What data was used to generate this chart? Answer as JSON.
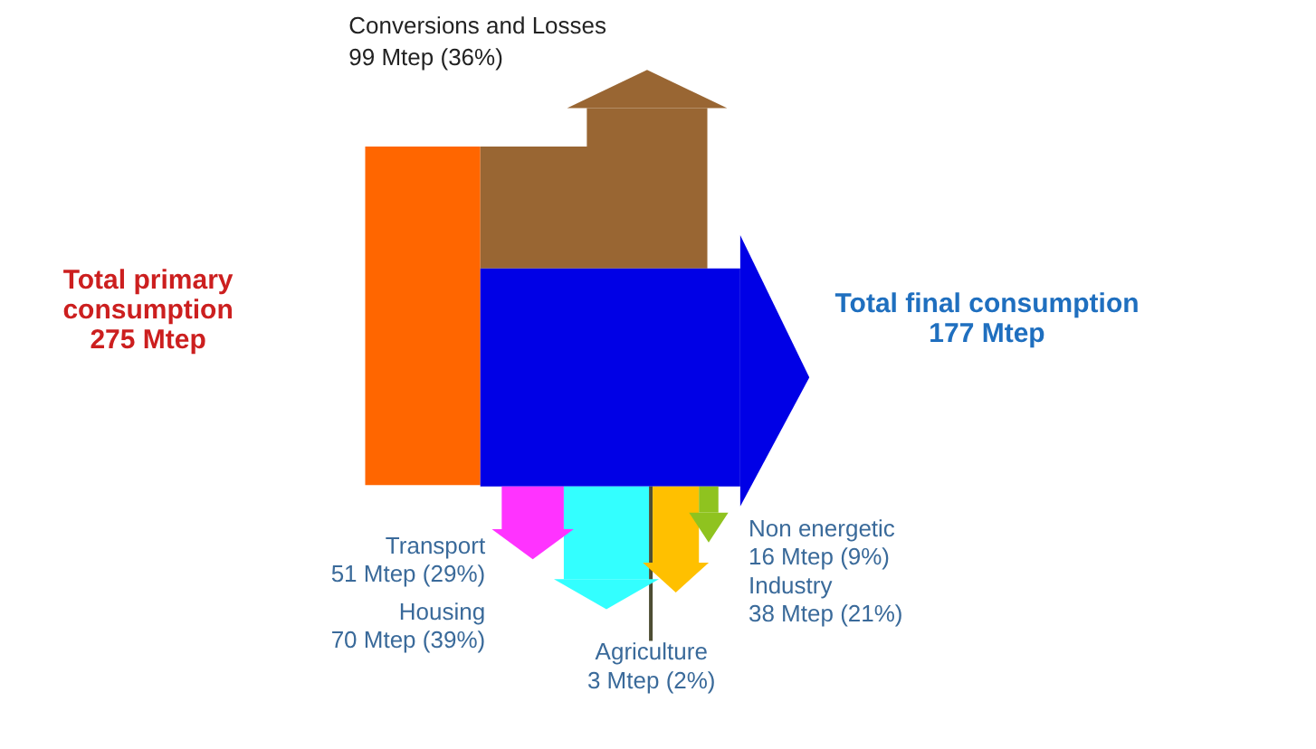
{
  "chart_data": {
    "type": "other",
    "categories": [
      "Total primary consumption",
      "Conversions and Losses",
      "Total final consumption",
      "Transport",
      "Housing",
      "Agriculture",
      "Industry",
      "Non energetic"
    ],
    "values": [
      275,
      99,
      177,
      51,
      70,
      3,
      38,
      16
    ],
    "value_labels": [
      "275 Mtep",
      "99 Mtep (36%)",
      "177 Mtep",
      "51 Mtep (29%)",
      "70 Mtep (39%)",
      "3 Mtep (2%)",
      "38 Mtep (21%)",
      "16 Mtep (9%)"
    ],
    "colors": [
      "#ff6600",
      "#996633",
      "#0000e6",
      "#ff33ff",
      "#33ffff",
      "#4d4d33",
      "#ffc000",
      "#8fc31f"
    ]
  }
}
